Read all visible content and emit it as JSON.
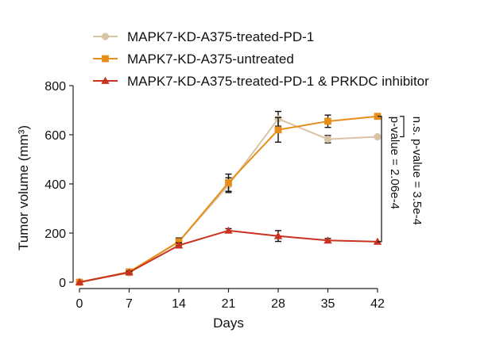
{
  "chart_data": {
    "type": "line",
    "title": "",
    "xlabel": "Days",
    "ylabel": "Tumor volume (mm³)",
    "x": [
      0,
      7,
      14,
      21,
      28,
      35,
      42
    ],
    "xticks": [
      "0",
      "7",
      "14",
      "21",
      "28",
      "35",
      "42"
    ],
    "yticks": [
      "0",
      "200",
      "400",
      "600",
      "800"
    ],
    "xlim": [
      0,
      42
    ],
    "ylim": [
      0,
      800
    ],
    "legend_position": "top",
    "series": [
      {
        "name": "MAPK7-KD-A375-treated-PD-1",
        "marker": "circle",
        "color": "#d9c4a5",
        "values": [
          0,
          38,
          165,
          395,
          665,
          582,
          592
        ],
        "errors": [
          0,
          5,
          15,
          30,
          30,
          15,
          0
        ]
      },
      {
        "name": "MAPK7-KD-A375-untreated",
        "marker": "square",
        "color": "#e58e1a",
        "values": [
          0,
          42,
          165,
          405,
          620,
          655,
          675
        ],
        "errors": [
          0,
          5,
          15,
          35,
          50,
          25,
          0
        ]
      },
      {
        "name": "MAPK7-KD-A375-treated-PD-1 & PRKDC inhibitor",
        "marker": "triangle",
        "color": "#c8321e",
        "values": [
          0,
          40,
          150,
          210,
          188,
          170,
          165
        ],
        "errors": [
          0,
          5,
          10,
          8,
          22,
          8,
          0
        ]
      }
    ],
    "annotations": [
      {
        "text": "n.s. p-value = 3.5e-4",
        "between": [
          "MAPK7-KD-A375-treated-PD-1",
          "MAPK7-KD-A375-untreated"
        ],
        "at_x": 42
      },
      {
        "text": "p-value = 2.06e-4",
        "between": [
          "MAPK7-KD-A375-untreated",
          "MAPK7-KD-A375-treated-PD-1 & PRKDC inhibitor"
        ],
        "at_x": 42
      }
    ]
  }
}
